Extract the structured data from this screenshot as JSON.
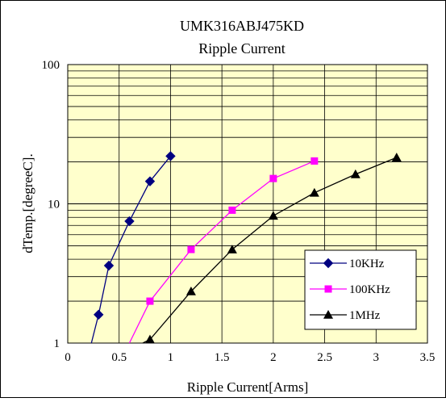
{
  "chart_data": {
    "type": "line",
    "title": "UMK316ABJ475KD",
    "subtitle": "Ripple Current",
    "xlabel": "Ripple Current[Arms]",
    "ylabel": "dTemp.[degreeC].",
    "xlim": [
      0,
      3.5
    ],
    "ylim": [
      1,
      100
    ],
    "yscale": "log",
    "xticks": [
      "0",
      "0.5",
      "1",
      "1.5",
      "2",
      "2.5",
      "3",
      "3.5"
    ],
    "yticks": [
      "1",
      "10",
      "100"
    ],
    "plot_background": "#FFFFCC",
    "grid": true,
    "legend_position": "bottom-right",
    "series": [
      {
        "name": "10KHz",
        "color": "#000080",
        "marker": "diamond",
        "points": [
          [
            0.3,
            1.6
          ],
          [
            0.4,
            3.6
          ],
          [
            0.6,
            7.5
          ],
          [
            0.8,
            14.5
          ],
          [
            1.0,
            22.0
          ]
        ],
        "line_extension": [
          [
            0.23,
            1.0
          ],
          [
            0.3,
            1.6
          ]
        ]
      },
      {
        "name": "100KHz",
        "color": "#FF00FF",
        "marker": "square",
        "points": [
          [
            0.8,
            2.0
          ],
          [
            1.2,
            4.7
          ],
          [
            1.6,
            9.0
          ],
          [
            2.0,
            15.2
          ],
          [
            2.4,
            20.3
          ]
        ],
        "line_extension": [
          [
            0.6,
            1.0
          ],
          [
            0.8,
            2.0
          ]
        ]
      },
      {
        "name": "1MHz",
        "color": "#000000",
        "marker": "triangle",
        "points": [
          [
            0.8,
            1.06
          ],
          [
            1.2,
            2.35
          ],
          [
            1.6,
            4.7
          ],
          [
            2.0,
            8.2
          ],
          [
            2.4,
            12.0
          ],
          [
            2.8,
            16.3
          ],
          [
            3.2,
            21.5
          ]
        ],
        "line_extension": [
          [
            0.73,
            1.0
          ],
          [
            0.8,
            1.06
          ]
        ]
      }
    ]
  }
}
